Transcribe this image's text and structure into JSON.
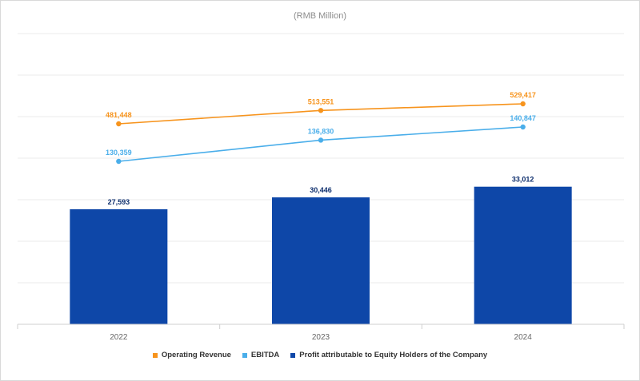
{
  "chart_data": {
    "type": "bar",
    "subtitle": "(RMB Million)",
    "categories": [
      "2022",
      "2023",
      "2024"
    ],
    "series": [
      {
        "name": "Operating Revenue",
        "type": "line",
        "color": "#f7941d",
        "values": [
          481448,
          513551,
          529417
        ],
        "labels": [
          "481,448",
          "513,551",
          "529,417"
        ]
      },
      {
        "name": "EBITDA",
        "type": "line",
        "color": "#4aaeea",
        "values": [
          130359,
          136830,
          140847
        ],
        "labels": [
          "130,359",
          "136,830",
          "140,847"
        ]
      },
      {
        "name": "Profit attributable to Equity Holders of the Company",
        "type": "bar",
        "color": "#0e47a8",
        "values": [
          27593,
          30446,
          33012
        ],
        "labels": [
          "27,593",
          "30,446",
          "33,012"
        ]
      }
    ],
    "grid": true,
    "legend_position": "bottom"
  }
}
